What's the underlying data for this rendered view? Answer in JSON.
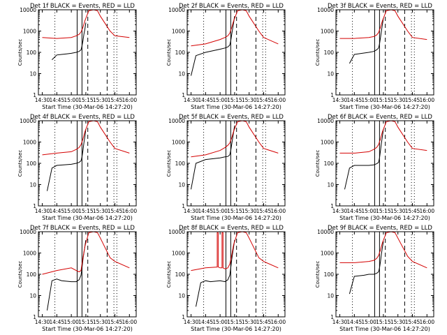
{
  "x_labels": [
    "14:30",
    "14:45",
    "15:00",
    "15:15",
    "15:30",
    "15:45",
    "16:00"
  ],
  "y_labels": [
    "1",
    "10",
    "100",
    "1000",
    "10000"
  ],
  "y_axis_title": "Counts/sec",
  "x_axis_title": "Start Time (30-Mar-06 14:27:20)",
  "colors": {
    "events": "#000000",
    "lld": "#d40000",
    "axes": "#000000"
  },
  "chart_data": [
    {
      "type": "line",
      "title": "Det 1f BLACK = Events, RED = LLD",
      "xlabel": "Start Time (30-Mar-06 14:27:20)",
      "ylabel": "Counts/sec",
      "xlim": [
        "14:30",
        "16:05"
      ],
      "ylim": [
        1,
        10000
      ],
      "y_scale": "log",
      "series": [
        {
          "name": "Events",
          "color": "#000000",
          "x": [
            "14:40",
            "14:45",
            "14:50",
            "14:55",
            "15:00",
            "15:05",
            "15:08",
            "15:10",
            "15:11",
            "15:12",
            "15:13",
            "15:14",
            "15:15"
          ],
          "y": [
            45,
            75,
            80,
            85,
            90,
            100,
            110,
            130,
            200,
            350,
            700,
            1200,
            2500
          ]
        },
        {
          "name": "LLD",
          "color": "#d40000",
          "x": [
            "14:30",
            "14:45",
            "15:00",
            "15:05",
            "15:08",
            "15:10",
            "15:12",
            "15:14",
            "15:18",
            "15:23",
            "15:27",
            "15:30",
            "15:40",
            "15:45",
            "16:00"
          ],
          "y": [
            500,
            450,
            500,
            600,
            700,
            900,
            1500,
            3000,
            9000,
            10000,
            9000,
            5000,
            1000,
            600,
            500
          ]
        }
      ]
    },
    {
      "type": "line",
      "title": "Det 2f BLACK = Events, RED = LLD",
      "xlabel": "Start Time (30-Mar-06 14:27:20)",
      "ylabel": "Counts/sec",
      "xlim": [
        "14:30",
        "16:05"
      ],
      "ylim": [
        1,
        10000
      ],
      "y_scale": "log",
      "series": [
        {
          "name": "Events",
          "color": "#000000",
          "x": [
            "14:30",
            "14:35",
            "14:45",
            "15:00",
            "15:05",
            "15:08",
            "15:10",
            "15:11",
            "15:12",
            "15:13",
            "15:14",
            "15:15"
          ],
          "y": [
            8,
            70,
            100,
            140,
            160,
            180,
            220,
            350,
            700,
            1300,
            2500,
            5000
          ]
        },
        {
          "name": "LLD",
          "color": "#d40000",
          "x": [
            "14:30",
            "14:45",
            "15:00",
            "15:05",
            "15:08",
            "15:10",
            "15:12",
            "15:14",
            "15:18",
            "15:23",
            "15:27",
            "15:30",
            "15:40",
            "15:45",
            "16:00"
          ],
          "y": [
            200,
            250,
            400,
            500,
            600,
            800,
            1500,
            3000,
            9000,
            10000,
            9000,
            5000,
            1000,
            500,
            250
          ]
        }
      ]
    },
    {
      "type": "line",
      "title": "Det 3f BLACK = Events, RED = LLD",
      "xlabel": "Start Time (30-Mar-06 14:27:20)",
      "ylabel": "Counts/sec",
      "xlim": [
        "14:30",
        "16:05"
      ],
      "ylim": [
        1,
        10000
      ],
      "y_scale": "log",
      "series": [
        {
          "name": "Events",
          "color": "#000000",
          "x": [
            "14:40",
            "14:45",
            "15:00",
            "15:05",
            "15:08",
            "15:10",
            "15:11",
            "15:12",
            "15:13",
            "15:14",
            "15:15"
          ],
          "y": [
            30,
            80,
            100,
            110,
            130,
            160,
            250,
            500,
            1000,
            2000,
            4000
          ]
        },
        {
          "name": "LLD",
          "color": "#d40000",
          "x": [
            "14:30",
            "14:45",
            "15:00",
            "15:05",
            "15:08",
            "15:10",
            "15:12",
            "15:14",
            "15:18",
            "15:23",
            "15:27",
            "15:30",
            "15:40",
            "15:45",
            "16:00"
          ],
          "y": [
            450,
            450,
            500,
            550,
            650,
            850,
            1500,
            3000,
            9000,
            10000,
            9000,
            5000,
            1000,
            500,
            400
          ]
        }
      ]
    },
    {
      "type": "line",
      "title": "Det 4f BLACK = Events, RED = LLD",
      "xlabel": "Start Time (30-Mar-06 14:27:20)",
      "ylabel": "Counts/sec",
      "xlim": [
        "14:30",
        "16:05"
      ],
      "ylim": [
        1,
        10000
      ],
      "y_scale": "log",
      "series": [
        {
          "name": "Events",
          "color": "#000000",
          "x": [
            "14:35",
            "14:40",
            "14:45",
            "15:00",
            "15:05",
            "15:08",
            "15:10",
            "15:11",
            "15:12",
            "15:13",
            "15:14",
            "15:15"
          ],
          "y": [
            5,
            60,
            80,
            90,
            100,
            110,
            130,
            200,
            400,
            900,
            1800,
            4000
          ]
        },
        {
          "name": "LLD",
          "color": "#d40000",
          "x": [
            "14:30",
            "14:45",
            "15:00",
            "15:05",
            "15:08",
            "15:10",
            "15:12",
            "15:14",
            "15:18",
            "15:23",
            "15:27",
            "15:30",
            "15:40",
            "15:45",
            "16:00"
          ],
          "y": [
            250,
            300,
            350,
            450,
            550,
            750,
            1400,
            3000,
            9000,
            10000,
            9000,
            5000,
            1000,
            500,
            300
          ]
        }
      ]
    },
    {
      "type": "line",
      "title": "Det 5f BLACK = Events, RED = LLD",
      "xlabel": "Start Time (30-Mar-06 14:27:20)",
      "ylabel": "Counts/sec",
      "xlim": [
        "14:30",
        "16:05"
      ],
      "ylim": [
        1,
        10000
      ],
      "y_scale": "log",
      "series": [
        {
          "name": "Events",
          "color": "#000000",
          "x": [
            "14:30",
            "14:35",
            "14:45",
            "15:00",
            "15:05",
            "15:08",
            "15:10",
            "15:11",
            "15:12",
            "15:13",
            "15:14",
            "15:15"
          ],
          "y": [
            6,
            100,
            150,
            180,
            200,
            210,
            250,
            400,
            800,
            1500,
            3000,
            6000
          ]
        },
        {
          "name": "LLD",
          "color": "#d40000",
          "x": [
            "14:30",
            "14:45",
            "15:00",
            "15:05",
            "15:08",
            "15:10",
            "15:12",
            "15:14",
            "15:18",
            "15:23",
            "15:27",
            "15:30",
            "15:40",
            "15:45",
            "16:00"
          ],
          "y": [
            200,
            250,
            400,
            550,
            700,
            900,
            1600,
            3200,
            9000,
            10000,
            9000,
            5000,
            1000,
            500,
            300
          ]
        }
      ]
    },
    {
      "type": "line",
      "title": "Det 6f BLACK = Events, RED = LLD",
      "xlabel": "Start Time (30-Mar-06 14:27:20)",
      "ylabel": "Counts/sec",
      "xlim": [
        "14:30",
        "16:05"
      ],
      "ylim": [
        1,
        10000
      ],
      "y_scale": "log",
      "series": [
        {
          "name": "Events",
          "color": "#000000",
          "x": [
            "14:35",
            "14:40",
            "14:45",
            "15:00",
            "15:05",
            "15:08",
            "15:10",
            "15:11",
            "15:12",
            "15:13",
            "15:14",
            "15:15"
          ],
          "y": [
            6,
            60,
            80,
            80,
            85,
            95,
            110,
            180,
            400,
            900,
            1800,
            4000
          ]
        },
        {
          "name": "LLD",
          "color": "#d40000",
          "x": [
            "14:30",
            "14:45",
            "15:00",
            "15:05",
            "15:08",
            "15:10",
            "15:12",
            "15:14",
            "15:18",
            "15:23",
            "15:27",
            "15:30",
            "15:40",
            "15:45",
            "16:00"
          ],
          "y": [
            300,
            300,
            350,
            450,
            550,
            750,
            1400,
            3000,
            9000,
            10000,
            9000,
            5000,
            1000,
            500,
            400
          ]
        }
      ]
    },
    {
      "type": "line",
      "title": "Det 7f BLACK = Events, RED = LLD",
      "xlabel": "Start Time (30-Mar-06 14:27:20)",
      "ylabel": "Counts/sec",
      "xlim": [
        "14:30",
        "16:05"
      ],
      "ylim": [
        1,
        10000
      ],
      "y_scale": "log",
      "series": [
        {
          "name": "Events",
          "color": "#000000",
          "x": [
            "14:35",
            "14:40",
            "14:45",
            "14:50",
            "15:00",
            "15:05",
            "15:08",
            "15:10",
            "15:11",
            "15:12",
            "15:13",
            "15:14",
            "15:15"
          ],
          "y": [
            2,
            50,
            60,
            50,
            45,
            45,
            55,
            90,
            200,
            500,
            1000,
            2000,
            4000
          ]
        },
        {
          "name": "LLD",
          "color": "#d40000",
          "x": [
            "14:30",
            "14:45",
            "15:00",
            "15:05",
            "15:08",
            "15:10",
            "15:12",
            "15:14",
            "15:18",
            "15:23",
            "15:27",
            "15:30",
            "15:40",
            "15:45",
            "16:00"
          ],
          "y": [
            100,
            150,
            200,
            150,
            130,
            150,
            600,
            2000,
            9000,
            10000,
            9000,
            5000,
            600,
            400,
            200
          ]
        }
      ]
    },
    {
      "type": "line",
      "title": "Det 8f BLACK = Events, RED = LLD",
      "xlabel": "Start Time (30-Mar-06 14:27:20)",
      "ylabel": "Counts/sec",
      "xlim": [
        "14:30",
        "16:05"
      ],
      "ylim": [
        1,
        10000
      ],
      "y_scale": "log",
      "series": [
        {
          "name": "Events",
          "color": "#000000",
          "x": [
            "14:35",
            "14:40",
            "14:45",
            "14:50",
            "15:00",
            "15:05",
            "15:08",
            "15:10",
            "15:11",
            "15:12",
            "15:13",
            "15:14",
            "15:15"
          ],
          "y": [
            3,
            40,
            50,
            45,
            50,
            45,
            55,
            90,
            200,
            500,
            1000,
            2000,
            4000
          ]
        },
        {
          "name": "LLD",
          "color": "#d40000",
          "x": [
            "14:30",
            "14:45",
            "14:57",
            "14:57",
            "14:58",
            "14:58",
            "15:00",
            "15:02",
            "15:02",
            "15:03",
            "15:03",
            "15:05",
            "15:08",
            "15:10",
            "15:12",
            "15:14",
            "15:18",
            "15:23",
            "15:27",
            "15:30",
            "15:40",
            "15:45",
            "16:00"
          ],
          "y": [
            150,
            200,
            220,
            9000,
            9000,
            220,
            200,
            200,
            9000,
            9000,
            200,
            180,
            200,
            300,
            800,
            2500,
            9000,
            10000,
            9000,
            5000,
            600,
            400,
            200
          ]
        }
      ]
    },
    {
      "type": "line",
      "title": "Det 9f BLACK = Events, RED = LLD",
      "xlabel": "Start Time (30-Mar-06 14:27:20)",
      "ylabel": "Counts/sec",
      "xlim": [
        "14:30",
        "16:05"
      ],
      "ylim": [
        1,
        10000
      ],
      "y_scale": "log",
      "series": [
        {
          "name": "Events",
          "color": "#000000",
          "x": [
            "14:40",
            "14:45",
            "14:55",
            "15:00",
            "15:05",
            "15:08",
            "15:10",
            "15:11",
            "15:12",
            "15:13",
            "15:14",
            "15:15"
          ],
          "y": [
            12,
            80,
            90,
            100,
            100,
            110,
            130,
            200,
            400,
            900,
            1800,
            3500
          ]
        },
        {
          "name": "LLD",
          "color": "#d40000",
          "x": [
            "14:30",
            "14:45",
            "15:00",
            "15:05",
            "15:08",
            "15:10",
            "15:12",
            "15:14",
            "15:18",
            "15:23",
            "15:27",
            "15:30",
            "15:40",
            "15:45",
            "16:00"
          ],
          "y": [
            350,
            350,
            400,
            450,
            550,
            750,
            1400,
            3000,
            9000,
            10000,
            9000,
            5000,
            700,
            400,
            200
          ]
        }
      ]
    }
  ]
}
